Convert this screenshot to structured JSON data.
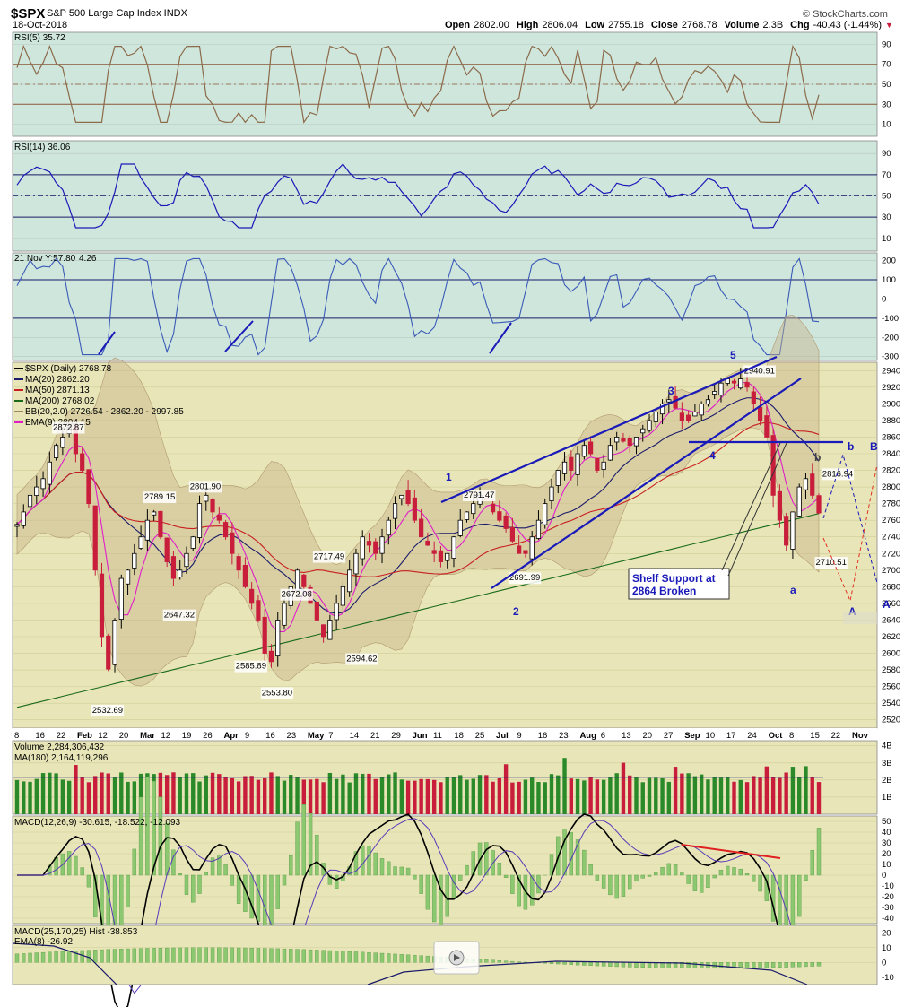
{
  "header": {
    "symbol": "$SPX",
    "name": "S&P 500 Large Cap Index",
    "exchange": "INDX",
    "date": "18-Oct-2018",
    "open_label": "Open",
    "open": "2802.00",
    "high_label": "High",
    "high": "2806.04",
    "low_label": "Low",
    "low": "2755.18",
    "close_label": "Close",
    "close": "2768.78",
    "volume_label": "Volume",
    "volume": "2.3B",
    "chg_label": "Chg",
    "chg": "-40.43 (-1.44%)",
    "chg_arrow": "▼",
    "brand": "© StockCharts.com"
  },
  "panels": {
    "rsi5": {
      "label": "RSI(5) 35.72",
      "ticks": [
        "90",
        "70",
        "50",
        "30",
        "10"
      ]
    },
    "rsi14": {
      "label": "RSI(14) 36.06",
      "ticks": [
        "90",
        "70",
        "50",
        "30",
        "10"
      ]
    },
    "cci": {
      "label": "21 Nov Y:57.80",
      "label_suffix": "4.26",
      "ticks": [
        "200",
        "100",
        "0",
        "-100",
        "-200",
        "-300"
      ]
    },
    "volume": {
      "label": "Volume 2,284,306,432",
      "ma_label": "MA(180) 2,164,119,296",
      "ticks": [
        "4B",
        "3B",
        "2B",
        "1B"
      ]
    },
    "macd": {
      "label": "MACD(12,26,9) -30.615, -18.522, -12.093",
      "ticks": [
        "50",
        "40",
        "30",
        "20",
        "10",
        "0",
        "-10",
        "-20",
        "-30",
        "-40"
      ]
    },
    "macd2": {
      "label": "MACD(25,170,25) Hist -38.853",
      "ema_label": "EMA(8) -26.92",
      "ticks": [
        "20",
        "10",
        "0",
        "-10"
      ]
    }
  },
  "colors": {
    "bg_top": "#cfe6dc",
    "bg_main": "#e8e6b8",
    "up": "#2a8a2a",
    "down": "#c81e3c",
    "wave_blue": "#1a1ab8",
    "rsi5_line": "#8b6a4a",
    "ma20": "#1a1a6a",
    "ma50": "#c81e1e",
    "ma200": "#1a6a1a",
    "ema9": "#e01ec8",
    "bb_fill": "#c8b48a"
  },
  "chart_data": {
    "type": "candlestick",
    "title": "$SPX (Daily) 2768.78",
    "legend": [
      "$SPX (Daily) 2768.78",
      "MA(20) 2862.20",
      "MA(50) 2871.13",
      "MA(200) 2768.02",
      "BB(20,2.0) 2726.54 - 2862.20 - 2997.85",
      "EMA(9) 2804.15"
    ],
    "legend_placement": "top-left",
    "ylim": [
      2510,
      2950
    ],
    "y_ticks": [
      2520,
      2540,
      2560,
      2580,
      2600,
      2620,
      2640,
      2660,
      2680,
      2700,
      2720,
      2740,
      2760,
      2780,
      2800,
      2820,
      2840,
      2860,
      2880,
      2900,
      2920,
      2940
    ],
    "x_ticks": [
      "8",
      "16",
      "22",
      "Feb",
      "12",
      "20",
      "Mar",
      "12",
      "19",
      "26",
      "Apr",
      "9",
      "16",
      "23",
      "May",
      "7",
      "14",
      "21",
      "29",
      "Jun",
      "11",
      "18",
      "25",
      "Jul",
      "9",
      "16",
      "23",
      "Aug",
      "6",
      "13",
      "20",
      "27",
      "Sep",
      "10",
      "17",
      "24",
      "Oct",
      "8",
      "15",
      "22",
      "Nov"
    ],
    "close_path": [
      2755,
      2770,
      2790,
      2800,
      2810,
      2830,
      2850,
      2860,
      2872,
      2840,
      2820,
      2780,
      2700,
      2620,
      2581,
      2640,
      2690,
      2700,
      2720,
      2740,
      2760,
      2770,
      2740,
      2710,
      2690,
      2700,
      2720,
      2740,
      2780,
      2790,
      2770,
      2760,
      2740,
      2720,
      2700,
      2680,
      2660,
      2640,
      2600,
      2590,
      2640,
      2660,
      2680,
      2700,
      2680,
      2660,
      2640,
      2620,
      2640,
      2660,
      2680,
      2700,
      2720,
      2740,
      2730,
      2720,
      2740,
      2760,
      2780,
      2790,
      2780,
      2760,
      2740,
      2730,
      2720,
      2710,
      2720,
      2740,
      2760,
      2770,
      2780,
      2790,
      2785,
      2770,
      2760,
      2750,
      2735,
      2720,
      2720,
      2740,
      2760,
      2780,
      2800,
      2820,
      2830,
      2820,
      2840,
      2850,
      2840,
      2820,
      2830,
      2850,
      2860,
      2855,
      2850,
      2860,
      2870,
      2880,
      2890,
      2900,
      2905,
      2895,
      2880,
      2880,
      2890,
      2900,
      2905,
      2915,
      2925,
      2930,
      2925,
      2930,
      2920,
      2900,
      2880,
      2860,
      2790,
      2760,
      2730,
      2770,
      2800,
      2810,
      2790,
      2768.78
    ],
    "price_labels": [
      {
        "text": "2872.87",
        "x_index": 8,
        "value": 2872.87
      },
      {
        "text": "2532.69",
        "x_index": 14,
        "value": 2532.69
      },
      {
        "text": "2789.15",
        "x_index": 22,
        "value": 2789.15
      },
      {
        "text": "2801.90",
        "x_index": 29,
        "value": 2801.9
      },
      {
        "text": "2647.32",
        "x_index": 25,
        "value": 2647.32
      },
      {
        "text": "2585.89",
        "x_index": 36,
        "value": 2585.89
      },
      {
        "text": "2553.80",
        "x_index": 40,
        "value": 2553.8
      },
      {
        "text": "2672.08",
        "x_index": 43,
        "value": 2672.08
      },
      {
        "text": "2717.49",
        "x_index": 48,
        "value": 2717.49
      },
      {
        "text": "2594.62",
        "x_index": 53,
        "value": 2594.62
      },
      {
        "text": "2791.47",
        "x_index": 71,
        "value": 2791.47
      },
      {
        "text": "2691.99",
        "x_index": 78,
        "value": 2691.99
      },
      {
        "text": "2940.91",
        "x_index": 114,
        "value": 2940.91
      },
      {
        "text": "2816.94",
        "x_index": 126,
        "value": 2816.94
      },
      {
        "text": "2710.51",
        "x_index": 125,
        "value": 2710.51
      }
    ],
    "wave_labels": [
      "1",
      "2",
      "3",
      "4",
      "5",
      "a",
      "b",
      "b",
      "B",
      "A",
      "A"
    ],
    "annotation": [
      "Shelf Support at",
      "2864 Broken"
    ],
    "shelf_support": 2864
  }
}
